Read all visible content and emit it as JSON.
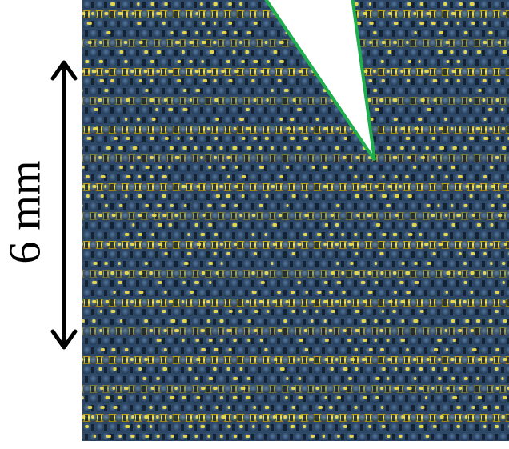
{
  "figure": {
    "scale_label": "6 mm",
    "colors": {
      "fabric_blue": "#2c4866",
      "fabric_blue_dark": "#16263a",
      "fabric_blue_light": "#4f7095",
      "gold_thread": "#e8cf2a",
      "gold_bright": "#fff26a",
      "pointer_outline": "#1fae4e",
      "pointer_fill": "#ffffff",
      "arrow": "#000000"
    },
    "icons": [
      "double-headed-arrow-icon",
      "pointer-wedge-icon"
    ]
  }
}
